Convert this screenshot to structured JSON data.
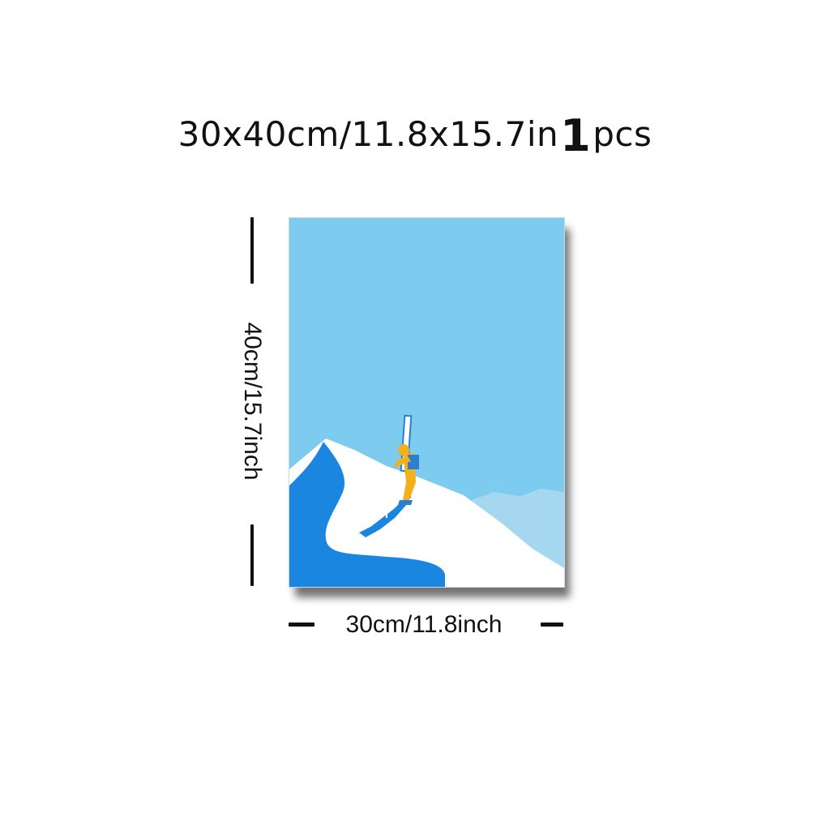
{
  "headline": {
    "size_text": "30x40cm/11.8x15.7in",
    "quantity_number": "1",
    "quantity_unit": "pcs"
  },
  "dimensions": {
    "height_label": "40cm/15.7inch",
    "width_label": "30cm/11.8inch"
  },
  "artwork": {
    "sky_color": "#7ecbf0",
    "snow_color": "#ffffff",
    "slope_shadow_color": "#1b86e0",
    "distant_mountain_color": "#a6d7f0",
    "skier_jacket_color": "#f2b01e",
    "skier_pack_color": "#2a7fd0"
  }
}
